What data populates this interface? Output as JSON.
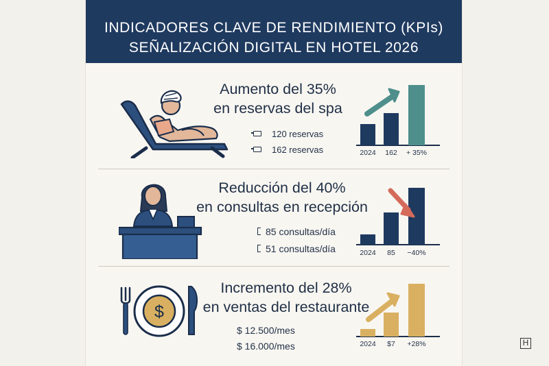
{
  "header": {
    "line1": "INDICADORES CLAVE DE RENDIMIENTO (KPIs)",
    "line2": "SEÑALIZACIÓN DIGITAL EN HOTEL 2026"
  },
  "sections": [
    {
      "headline1": "Aumento del 35%",
      "headline2": "en reservas del spa",
      "metric1": "120 reservas",
      "metric2": "162 reservas",
      "icon": "spa-lounger-icon",
      "chart_labels": [
        "2024",
        "162",
        "+ 35%"
      ],
      "trend": "up"
    },
    {
      "headline1": "Reducción del 40%",
      "headline2": "en consultas en recepción",
      "metric1": "85 consultas/día",
      "metric2": "51 consultas/día",
      "icon": "reception-desk-icon",
      "chart_labels": [
        "2024",
        "85",
        "−40%"
      ],
      "trend": "down"
    },
    {
      "headline1": "Incremento del 28%",
      "headline2": "en ventas del restaurante",
      "metric1": "$ 12.500/mes",
      "metric2": "$ 16.000/mes",
      "icon": "restaurant-plate-icon",
      "chart_labels": [
        "2024",
        "$7",
        "+28%"
      ],
      "trend": "up"
    }
  ],
  "colors": {
    "header_bg": "#1f3a5f",
    "navy": "#1f3a5f",
    "teal": "#4e8f8c",
    "red_arrow": "#d46a5a",
    "gold": "#d9b061"
  },
  "logo": "H"
}
